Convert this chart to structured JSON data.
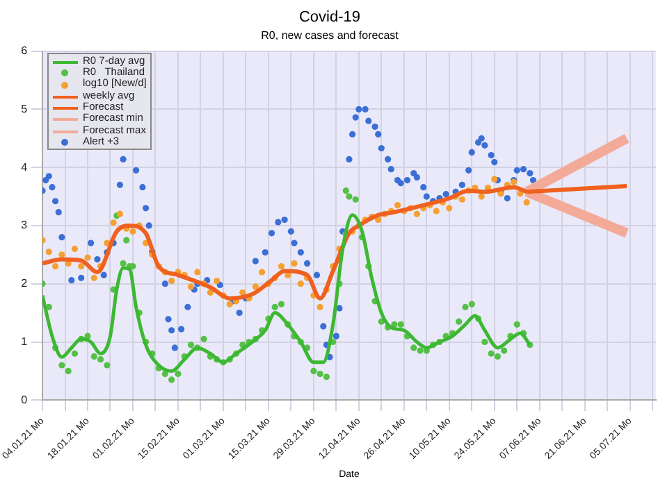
{
  "chart_data": {
    "type": "line",
    "title": "Covid-19",
    "subtitle": "R0, new cases and forecast",
    "xlabel": "Date",
    "xlim": [
      "--01-04",
      "--07-13"
    ],
    "xticks": [
      {
        "value": "--01-04",
        "label": "04.01.21 Mo"
      },
      {
        "value": "--01-11",
        "label": null
      },
      {
        "value": "--01-18",
        "label": "18.01.21 Mo"
      },
      {
        "value": "--01-25",
        "label": null
      },
      {
        "value": "--02-01",
        "label": "01.02.21 Mo"
      },
      {
        "value": "--02-08",
        "label": null
      },
      {
        "value": "--02-15",
        "label": "15.02.21 Mo"
      },
      {
        "value": "--02-22",
        "label": null
      },
      {
        "value": "--03-01",
        "label": "01.03.21 Mo"
      },
      {
        "value": "--03-08",
        "label": null
      },
      {
        "value": "--03-15",
        "label": "15.03.21 Mo"
      },
      {
        "value": "--03-22",
        "label": null
      },
      {
        "value": "--03-29",
        "label": "29.03.21 Mo"
      },
      {
        "value": "--04-05",
        "label": null
      },
      {
        "value": "--04-12",
        "label": "12.04.21 Mo"
      },
      {
        "value": "--04-19",
        "label": null
      },
      {
        "value": "--04-26",
        "label": "26.04.21 Mo"
      },
      {
        "value": "--05-03",
        "label": null
      },
      {
        "value": "--05-10",
        "label": "10.05.21 Mo"
      },
      {
        "value": "--05-17",
        "label": null
      },
      {
        "value": "--05-24",
        "label": "24.05.21 Mo"
      },
      {
        "value": "--05-31",
        "label": null
      },
      {
        "value": "--06-07",
        "label": "07.06.21 Mo"
      },
      {
        "value": "--06-14",
        "label": null
      },
      {
        "value": "--06-21",
        "label": "21.06.21 Mo"
      },
      {
        "value": "--06-28",
        "label": null
      },
      {
        "value": "--07-05",
        "label": "05.07.21 Mo"
      },
      {
        "value": "--07-12",
        "label": null
      }
    ],
    "ylim": [
      0,
      6
    ],
    "yticks": [
      0,
      1,
      2,
      3,
      4,
      5,
      6
    ],
    "grid": true,
    "legend": "top left",
    "series": [
      {
        "name": "R0 7-day avg",
        "type": "line",
        "marker": "none",
        "color": "#3cb832",
        "x": [
          "--01-04",
          "--01-07",
          "--01-10",
          "--01-13",
          "--01-16",
          "--01-19",
          "--01-22",
          "--01-25",
          "--01-27",
          "--01-29",
          "--01-31",
          "--02-02",
          "--02-05",
          "--02-09",
          "--02-13",
          "--02-17",
          "--02-21",
          "--02-25",
          "--03-01",
          "--03-05",
          "--03-10",
          "--03-14",
          "--03-17",
          "--03-21",
          "--03-25",
          "--03-29",
          "--04-01",
          "--04-04",
          "--04-07",
          "--04-10",
          "--04-13",
          "--04-16",
          "--04-19",
          "--04-22",
          "--04-26",
          "--04-30",
          "--05-03",
          "--05-07",
          "--05-11",
          "--05-15",
          "--05-18",
          "--05-21",
          "--05-25",
          "--05-29",
          "--06-01",
          "--06-04"
        ],
        "values": [
          1.8,
          1.1,
          0.74,
          0.9,
          1.05,
          1.0,
          0.8,
          1.1,
          1.9,
          2.27,
          2.25,
          1.6,
          0.95,
          0.6,
          0.5,
          0.7,
          0.9,
          0.8,
          0.65,
          0.8,
          1.0,
          1.2,
          1.5,
          1.3,
          1.0,
          0.65,
          0.65,
          1.3,
          2.6,
          3.18,
          2.9,
          2.1,
          1.5,
          1.25,
          1.2,
          1.0,
          0.9,
          1.0,
          1.1,
          1.3,
          1.45,
          1.2,
          0.9,
          1.05,
          1.15,
          0.95
        ]
      },
      {
        "name": "R0   Thailand",
        "type": "scatter",
        "marker": "circle",
        "color": "#55c046",
        "x": [
          "--01-04",
          "--01-06",
          "--01-08",
          "--01-10",
          "--01-12",
          "--01-14",
          "--01-16",
          "--01-18",
          "--01-20",
          "--01-22",
          "--01-24",
          "--01-26",
          "--01-27",
          "--01-29",
          "--01-30",
          "--01-31",
          "--02-01",
          "--02-03",
          "--02-05",
          "--02-07",
          "--02-09",
          "--02-11",
          "--02-13",
          "--02-15",
          "--02-17",
          "--02-19",
          "--02-21",
          "--02-23",
          "--02-25",
          "--02-27",
          "--03-01",
          "--03-03",
          "--03-05",
          "--03-07",
          "--03-09",
          "--03-11",
          "--03-13",
          "--03-15",
          "--03-17",
          "--03-19",
          "--03-21",
          "--03-23",
          "--03-25",
          "--03-27",
          "--03-29",
          "--03-31",
          "--04-02",
          "--04-04",
          "--04-06",
          "--04-08",
          "--04-09",
          "--04-11",
          "--04-13",
          "--04-15",
          "--04-17",
          "--04-19",
          "--04-21",
          "--04-23",
          "--04-25",
          "--04-27",
          "--04-29",
          "--05-01",
          "--05-03",
          "--05-05",
          "--05-07",
          "--05-09",
          "--05-11",
          "--05-13",
          "--05-15",
          "--05-17",
          "--05-19",
          "--05-21",
          "--05-23",
          "--05-25",
          "--05-27",
          "--05-29",
          "--05-31",
          "--06-02",
          "--06-04"
        ],
        "values": [
          2.0,
          1.6,
          0.9,
          0.6,
          0.5,
          0.8,
          1.05,
          1.1,
          0.75,
          0.7,
          0.6,
          1.9,
          3.17,
          2.35,
          2.75,
          2.3,
          2.3,
          1.5,
          1.0,
          0.8,
          0.55,
          0.45,
          0.35,
          0.45,
          0.75,
          0.95,
          0.9,
          1.05,
          0.75,
          0.7,
          0.65,
          0.7,
          0.8,
          0.95,
          1.0,
          1.05,
          1.2,
          1.4,
          1.6,
          1.65,
          1.3,
          1.1,
          1.0,
          0.9,
          0.5,
          0.45,
          0.4,
          1.0,
          2.0,
          3.6,
          3.5,
          3.45,
          2.8,
          2.3,
          1.7,
          1.35,
          1.25,
          1.3,
          1.3,
          1.1,
          0.9,
          0.85,
          0.85,
          0.95,
          1.0,
          1.1,
          1.15,
          1.35,
          1.6,
          1.65,
          1.4,
          1.0,
          0.8,
          0.75,
          0.85,
          1.1,
          1.3,
          1.15,
          0.95
        ]
      },
      {
        "name": "log10 [New/d]",
        "type": "scatter",
        "marker": "circle",
        "color": "#f5a032",
        "x": [
          "--01-04",
          "--01-06",
          "--01-08",
          "--01-10",
          "--01-12",
          "--01-14",
          "--01-16",
          "--01-18",
          "--01-20",
          "--01-22",
          "--01-24",
          "--01-26",
          "--01-28",
          "--01-30",
          "--02-01",
          "--02-03",
          "--02-05",
          "--02-07",
          "--02-09",
          "--02-11",
          "--02-13",
          "--02-15",
          "--02-17",
          "--02-19",
          "--02-21",
          "--02-23",
          "--02-25",
          "--02-27",
          "--03-01",
          "--03-03",
          "--03-05",
          "--03-07",
          "--03-09",
          "--03-11",
          "--03-13",
          "--03-15",
          "--03-17",
          "--03-19",
          "--03-21",
          "--03-23",
          "--03-25",
          "--03-27",
          "--03-29",
          "--03-31",
          "--04-02",
          "--04-04",
          "--04-06",
          "--04-08",
          "--04-10",
          "--04-12",
          "--04-14",
          "--04-16",
          "--04-18",
          "--04-20",
          "--04-22",
          "--04-24",
          "--04-26",
          "--04-28",
          "--04-30",
          "--05-02",
          "--05-04",
          "--05-06",
          "--05-08",
          "--05-10",
          "--05-12",
          "--05-14",
          "--05-16",
          "--05-18",
          "--05-20",
          "--05-22",
          "--05-24",
          "--05-26",
          "--05-28",
          "--05-30",
          "--06-01",
          "--06-03"
        ],
        "values": [
          2.75,
          2.55,
          2.3,
          2.5,
          2.35,
          2.6,
          2.3,
          2.45,
          2.1,
          2.3,
          2.7,
          3.05,
          3.2,
          2.95,
          2.9,
          3.0,
          2.7,
          2.5,
          2.3,
          2.2,
          2.05,
          2.2,
          2.15,
          1.95,
          2.2,
          2.0,
          1.85,
          2.05,
          1.8,
          1.65,
          1.7,
          1.85,
          1.75,
          1.95,
          2.2,
          2.0,
          2.1,
          2.3,
          2.15,
          2.35,
          2.0,
          2.1,
          1.8,
          1.6,
          1.9,
          2.3,
          2.6,
          2.85,
          2.9,
          3.0,
          3.1,
          3.15,
          3.1,
          3.2,
          3.25,
          3.35,
          3.25,
          3.3,
          3.2,
          3.3,
          3.35,
          3.25,
          3.4,
          3.3,
          3.5,
          3.45,
          3.6,
          3.65,
          3.5,
          3.65,
          3.8,
          3.55,
          3.7,
          3.75,
          3.55,
          3.4
        ]
      },
      {
        "name": "weekly avg",
        "type": "line",
        "marker": "none",
        "color": "#f0601e",
        "x": [
          "--01-04",
          "--01-10",
          "--01-16",
          "--01-21",
          "--01-27",
          "--01-31",
          "--02-05",
          "--02-09",
          "--02-15",
          "--02-25",
          "--03-03",
          "--03-10",
          "--03-16",
          "--03-20",
          "--03-27",
          "--03-31",
          "--04-04",
          "--04-09",
          "--04-12",
          "--04-18",
          "--04-22",
          "--05-02",
          "--05-10",
          "--05-16",
          "--05-21",
          "--05-30",
          "--06-03"
        ],
        "values": [
          2.35,
          2.42,
          2.4,
          2.2,
          2.9,
          3.0,
          2.87,
          2.3,
          2.15,
          1.94,
          1.75,
          1.82,
          2.06,
          2.22,
          2.15,
          1.75,
          2.22,
          2.87,
          3.0,
          3.18,
          3.22,
          3.35,
          3.47,
          3.6,
          3.58,
          3.66,
          3.58
        ]
      },
      {
        "name": "Forecast",
        "type": "line",
        "marker": "none",
        "color": "#f0601e",
        "x": [
          "--06-03",
          "--07-04"
        ],
        "values": [
          3.58,
          3.68
        ]
      },
      {
        "name": "Forecast min",
        "type": "line",
        "marker": "none",
        "color": "#f3aa98",
        "x": [
          "--06-03",
          "--07-04"
        ],
        "values": [
          3.58,
          2.87
        ]
      },
      {
        "name": "Forecast max",
        "type": "line",
        "marker": "none",
        "color": "#f3aa98",
        "x": [
          "--06-03",
          "--07-04"
        ],
        "values": [
          3.58,
          4.5
        ]
      },
      {
        "name": "Alert +3",
        "type": "scatter",
        "marker": "circle",
        "color": "#3b6fd6",
        "x": [
          "--01-04",
          "--01-05",
          "--01-06",
          "--01-07",
          "--01-08",
          "--01-09",
          "--01-10",
          "--01-13",
          "--01-16",
          "--01-19",
          "--01-21",
          "--01-23",
          "--01-24",
          "--01-26",
          "--01-28",
          "--01-29",
          "--02-02",
          "--02-04",
          "--02-05",
          "--02-06",
          "--02-07",
          "--02-11",
          "--02-12",
          "--02-13",
          "--02-14",
          "--02-16",
          "--02-18",
          "--02-20",
          "--02-21",
          "--02-24",
          "--02-28",
          "--03-04",
          "--03-06",
          "--03-08",
          "--03-11",
          "--03-14",
          "--03-16",
          "--03-18",
          "--03-20",
          "--03-22",
          "--03-23",
          "--03-25",
          "--03-27",
          "--03-30",
          "--04-01",
          "--04-02",
          "--04-03",
          "--04-05",
          "--04-06",
          "--04-07",
          "--04-09",
          "--04-10",
          "--04-11",
          "--04-12",
          "--04-14",
          "--04-15",
          "--04-17",
          "--04-18",
          "--04-19",
          "--04-21",
          "--04-22",
          "--04-24",
          "--04-25",
          "--04-27",
          "--04-29",
          "--04-30",
          "--05-02",
          "--05-03",
          "--05-05",
          "--05-07",
          "--05-09",
          "--05-12",
          "--05-14",
          "--05-16",
          "--05-17",
          "--05-19",
          "--05-20",
          "--05-21",
          "--05-23",
          "--05-24",
          "--05-25",
          "--05-26",
          "--05-28",
          "--05-30",
          "--05-31",
          "--06-02",
          "--06-04",
          "--06-05"
        ],
        "values": [
          3.6,
          3.78,
          3.85,
          3.66,
          3.42,
          3.23,
          2.8,
          2.06,
          2.1,
          2.7,
          2.42,
          2.15,
          2.54,
          2.7,
          3.7,
          4.14,
          3.95,
          3.66,
          3.3,
          3.0,
          2.55,
          2.0,
          1.39,
          1.2,
          0.9,
          1.22,
          1.6,
          1.9,
          2.0,
          2.06,
          1.98,
          1.7,
          1.5,
          1.75,
          2.39,
          2.54,
          2.87,
          3.06,
          3.1,
          2.9,
          2.7,
          2.54,
          2.35,
          2.15,
          1.27,
          0.95,
          0.74,
          1.1,
          1.58,
          2.9,
          4.14,
          4.57,
          4.86,
          5.0,
          5.0,
          4.8,
          4.7,
          4.57,
          4.33,
          4.14,
          3.97,
          3.78,
          3.73,
          3.78,
          3.9,
          3.83,
          3.66,
          3.5,
          3.42,
          3.47,
          3.54,
          3.58,
          3.7,
          3.95,
          4.26,
          4.43,
          4.5,
          4.38,
          4.21,
          4.09,
          3.78,
          3.58,
          3.47,
          3.78,
          3.95,
          3.97,
          3.9,
          3.78
        ]
      }
    ]
  }
}
